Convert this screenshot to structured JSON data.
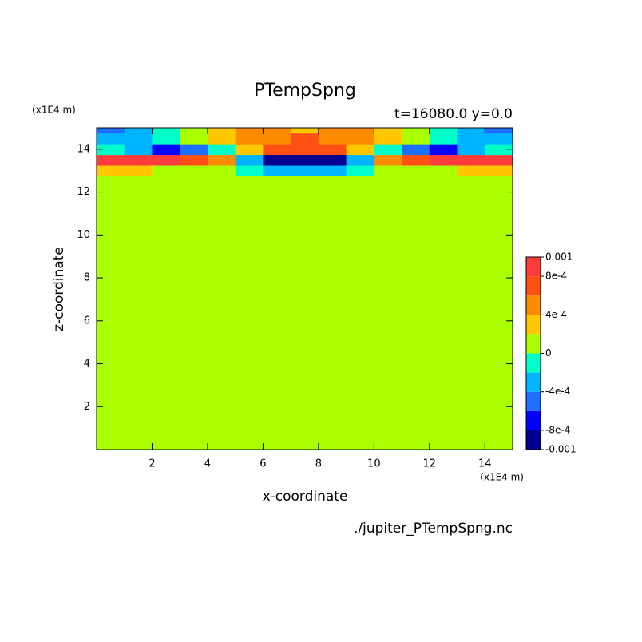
{
  "chart_data": {
    "type": "contour",
    "title": "PTempSpng",
    "subtitle": "t=16080.0 y=0.0",
    "x_label": "x-coordinate",
    "y_label": "z-coordinate",
    "x_unit": "(x1E4 m)",
    "y_unit": "(x1E4 m)",
    "source": "./jupiter_PTempSpng.nc",
    "xlim": [
      0,
      15
    ],
    "ylim": [
      0,
      15
    ],
    "xticks": [
      2,
      4,
      6,
      8,
      10,
      12,
      14
    ],
    "yticks": [
      2,
      4,
      6,
      8,
      10,
      12,
      14
    ],
    "xbins": [
      0,
      1,
      2,
      3,
      4,
      5,
      6,
      7,
      8,
      9,
      10,
      11,
      12,
      13,
      14,
      15
    ],
    "zbins": [
      0,
      12.75,
      13.25,
      13.75,
      14.25,
      14.75,
      15
    ],
    "values": [
      [
        0,
        0,
        0,
        0,
        0,
        0,
        0,
        0,
        0,
        0,
        0,
        0,
        0,
        0,
        0
      ],
      [
        0.0003,
        0.0003,
        0.0001,
        0.0001,
        0,
        -0.0001,
        -0.0003,
        -0.0003,
        -0.0003,
        -0.0001,
        0,
        0.0001,
        0.0001,
        0.0003,
        0.0003
      ],
      [
        0.0009,
        0.0009,
        0.0009,
        0.0007,
        0.0005,
        -0.0003,
        -0.0009,
        -0.0009,
        -0.0009,
        -0.0003,
        0.0005,
        0.0007,
        0.0009,
        0.0009,
        0.0009
      ],
      [
        -0.0001,
        -0.0003,
        -0.0007,
        -0.0005,
        -0.0001,
        0.0003,
        0.0007,
        0.0007,
        0.0007,
        0.0003,
        -0.0001,
        -0.0005,
        -0.0007,
        -0.0003,
        -0.0001
      ],
      [
        -0.0003,
        -0.0003,
        -0.0001,
        0.0001,
        0.0003,
        0.0005,
        0.0005,
        0.0007,
        0.0005,
        0.0005,
        0.0003,
        0.0001,
        -0.0001,
        -0.0003,
        -0.0003
      ],
      [
        -0.0005,
        -0.0003,
        -0.0001,
        0.0001,
        0.0003,
        0.0005,
        0.0005,
        0.0003,
        0.0005,
        0.0005,
        0.0003,
        0.0001,
        -0.0001,
        -0.0003,
        -0.0005
      ]
    ],
    "levels": [
      -0.001,
      -0.0008,
      -0.0006,
      -0.0004,
      -0.0002,
      0,
      0.0002,
      0.0004,
      0.0006,
      0.0008,
      0.001
    ],
    "colors": [
      "#000090",
      "#0000ff",
      "#1e6eff",
      "#00b4ff",
      "#00ffc8",
      "#aaff00",
      "#ffc800",
      "#ff8c00",
      "#ff5014",
      "#ff3c3c"
    ],
    "cticks": [
      -0.001,
      {
        "value": -0.0008,
        "label": "-8e-4"
      },
      {
        "value": -0.0004,
        "label": "-4e-4"
      },
      0,
      {
        "value": 0.0004,
        "label": "4e-4"
      },
      {
        "value": 0.0008,
        "label": "8e-4"
      },
      0.001
    ]
  }
}
